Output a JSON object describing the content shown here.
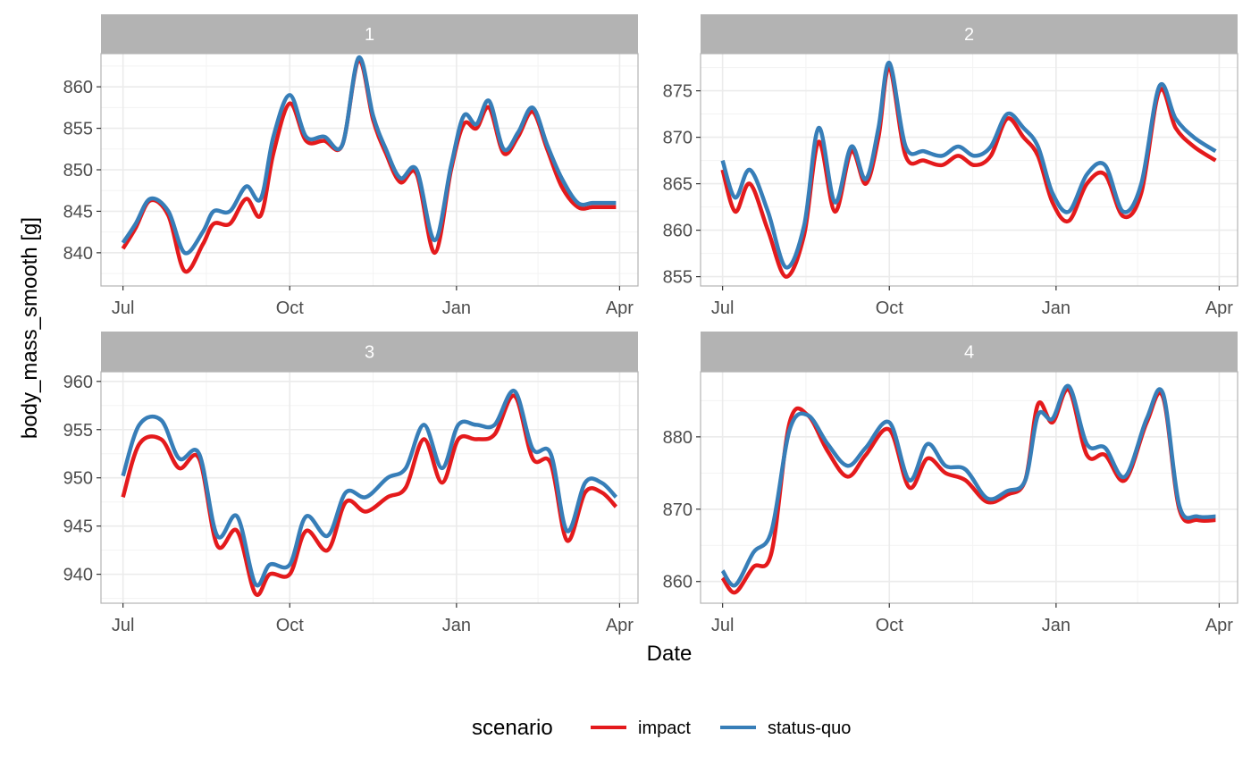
{
  "chart_data": {
    "type": "line",
    "xlabel": "Date",
    "ylabel": "body_mass_smooth [g]",
    "x_ticks": [
      "Jul",
      "Oct",
      "Jan",
      "Apr"
    ],
    "x_tick_dates": [
      "2021-07-01",
      "2021-10-01",
      "2022-01-01",
      "2022-04-01"
    ],
    "grid": true,
    "legend": {
      "title": "scenario",
      "position": "bottom",
      "entries": [
        "impact",
        "status-quo"
      ]
    },
    "colors": {
      "impact": "#e41a1c",
      "status-quo": "#377eb8",
      "strip": "#b3b3b3",
      "grid": "#ebebeb",
      "panel_border": "#b3b3b3"
    },
    "panels": [
      {
        "strip": "1",
        "ylim": [
          836,
          864
        ],
        "y_ticks": [
          840,
          845,
          850,
          855,
          860
        ],
        "series": [
          {
            "name": "impact",
            "x": [
              "2021-07-01",
              "2021-07-08",
              "2021-07-16",
              "2021-07-26",
              "2021-08-04",
              "2021-08-14",
              "2021-08-20",
              "2021-08-29",
              "2021-09-07",
              "2021-09-15",
              "2021-09-22",
              "2021-10-01",
              "2021-10-10",
              "2021-10-20",
              "2021-10-30",
              "2021-11-08",
              "2021-11-16",
              "2021-11-23",
              "2021-12-01",
              "2021-12-10",
              "2021-12-20",
              "2021-12-29",
              "2022-01-05",
              "2022-01-12",
              "2022-01-19",
              "2022-01-27",
              "2022-02-04",
              "2022-02-12",
              "2022-02-20",
              "2022-02-28",
              "2022-03-09",
              "2022-03-17",
              "2022-03-24",
              "2022-03-30"
            ],
            "y": [
              840.5,
              843,
              846.3,
              844.5,
              837.8,
              841,
              843.5,
              843.5,
              846.5,
              844.5,
              852,
              858,
              853.5,
              853.5,
              853,
              863.2,
              856,
              852,
              848.5,
              849.5,
              840,
              850,
              855.5,
              855,
              857.5,
              852,
              854,
              857,
              852.5,
              848,
              845.5,
              845.5,
              845.5,
              845.5
            ]
          },
          {
            "name": "status-quo",
            "x": [
              "2021-07-01",
              "2021-07-08",
              "2021-07-16",
              "2021-07-26",
              "2021-08-04",
              "2021-08-14",
              "2021-08-20",
              "2021-08-29",
              "2021-09-07",
              "2021-09-15",
              "2021-09-22",
              "2021-10-01",
              "2021-10-10",
              "2021-10-20",
              "2021-10-30",
              "2021-11-08",
              "2021-11-16",
              "2021-11-23",
              "2021-12-01",
              "2021-12-10",
              "2021-12-20",
              "2021-12-29",
              "2022-01-05",
              "2022-01-12",
              "2022-01-19",
              "2022-01-27",
              "2022-02-04",
              "2022-02-12",
              "2022-02-20",
              "2022-02-28",
              "2022-03-09",
              "2022-03-17",
              "2022-03-24",
              "2022-03-30"
            ],
            "y": [
              841.2,
              843.5,
              846.5,
              845,
              840,
              842.5,
              845,
              845,
              848,
              846.5,
              854,
              859,
              854,
              854,
              853,
              863.5,
              856.5,
              852.5,
              849,
              850,
              841.5,
              850.5,
              856.5,
              855.5,
              858.3,
              852.5,
              854.5,
              857.5,
              853,
              849,
              846,
              846,
              846,
              846
            ]
          }
        ]
      },
      {
        "strip": "2",
        "ylim": [
          854,
          879
        ],
        "y_ticks": [
          855,
          860,
          865,
          870,
          875
        ],
        "series": [
          {
            "name": "impact",
            "x": [
              "2021-07-01",
              "2021-07-08",
              "2021-07-16",
              "2021-07-26",
              "2021-08-05",
              "2021-08-15",
              "2021-08-23",
              "2021-09-01",
              "2021-09-10",
              "2021-09-18",
              "2021-09-25",
              "2021-10-01",
              "2021-10-10",
              "2021-10-20",
              "2021-10-30",
              "2021-11-08",
              "2021-11-17",
              "2021-11-26",
              "2021-12-05",
              "2021-12-14",
              "2021-12-22",
              "2021-12-30",
              "2022-01-08",
              "2022-01-18",
              "2022-01-28",
              "2022-02-07",
              "2022-02-17",
              "2022-02-27",
              "2022-03-08",
              "2022-03-18",
              "2022-03-30"
            ],
            "y": [
              866.5,
              862,
              865,
              860,
              855,
              859.5,
              869.5,
              862,
              868.5,
              865,
              870,
              877.5,
              868,
              867.5,
              867,
              868,
              867,
              868,
              872,
              870,
              868,
              863,
              861,
              865,
              866,
              861.5,
              864,
              875,
              871,
              869,
              867.5
            ]
          },
          {
            "name": "status-quo",
            "x": [
              "2021-07-01",
              "2021-07-08",
              "2021-07-16",
              "2021-07-26",
              "2021-08-05",
              "2021-08-15",
              "2021-08-23",
              "2021-09-01",
              "2021-09-10",
              "2021-09-18",
              "2021-09-25",
              "2021-10-01",
              "2021-10-10",
              "2021-10-20",
              "2021-10-30",
              "2021-11-08",
              "2021-11-17",
              "2021-11-26",
              "2021-12-05",
              "2021-12-14",
              "2021-12-22",
              "2021-12-30",
              "2022-01-08",
              "2022-01-18",
              "2022-01-28",
              "2022-02-07",
              "2022-02-17",
              "2022-02-27",
              "2022-03-08",
              "2022-03-18",
              "2022-03-30"
            ],
            "y": [
              867.5,
              863.5,
              866.5,
              862,
              856,
              860.5,
              871,
              863,
              869,
              865.5,
              871,
              878,
              869,
              868.5,
              868,
              869,
              868,
              869,
              872.5,
              871,
              869,
              864,
              862,
              866,
              867,
              862,
              865,
              875.5,
              872,
              870,
              868.5
            ]
          }
        ]
      },
      {
        "strip": "3",
        "ylim": [
          937,
          961
        ],
        "y_ticks": [
          940,
          945,
          950,
          955,
          960
        ],
        "series": [
          {
            "name": "impact",
            "x": [
              "2021-07-01",
              "2021-07-10",
              "2021-07-22",
              "2021-08-01",
              "2021-08-12",
              "2021-08-22",
              "2021-09-02",
              "2021-09-12",
              "2021-09-20",
              "2021-10-01",
              "2021-10-10",
              "2021-10-22",
              "2021-11-01",
              "2021-11-12",
              "2021-11-24",
              "2021-12-04",
              "2021-12-14",
              "2021-12-24",
              "2022-01-02",
              "2022-01-12",
              "2022-01-22",
              "2022-02-02",
              "2022-02-12",
              "2022-02-22",
              "2022-03-03",
              "2022-03-13",
              "2022-03-22",
              "2022-03-30"
            ],
            "y": [
              948,
              953.5,
              954,
              951,
              952,
              943,
              944.5,
              938,
              940,
              940,
              944.5,
              942.5,
              947.5,
              946.5,
              948,
              949,
              954,
              949.5,
              954,
              954,
              954.5,
              958.5,
              952,
              951.5,
              943.5,
              948.5,
              948.5,
              947
            ]
          },
          {
            "name": "status-quo",
            "x": [
              "2021-07-01",
              "2021-07-10",
              "2021-07-22",
              "2021-08-01",
              "2021-08-12",
              "2021-08-22",
              "2021-09-02",
              "2021-09-12",
              "2021-09-20",
              "2021-10-01",
              "2021-10-10",
              "2021-10-22",
              "2021-11-01",
              "2021-11-12",
              "2021-11-24",
              "2021-12-04",
              "2021-12-14",
              "2021-12-24",
              "2022-01-02",
              "2022-01-12",
              "2022-01-22",
              "2022-02-02",
              "2022-02-12",
              "2022-02-22",
              "2022-03-03",
              "2022-03-13",
              "2022-03-22",
              "2022-03-30"
            ],
            "y": [
              950.2,
              955.5,
              956,
              952,
              952.5,
              944,
              946,
              939,
              941,
              941,
              946,
              944,
              948.5,
              948,
              950,
              951,
              955.5,
              951,
              955.5,
              955.5,
              955.5,
              959,
              953,
              952.5,
              944.5,
              949.5,
              949.5,
              948
            ]
          }
        ]
      },
      {
        "strip": "4",
        "ylim": [
          857,
          889
        ],
        "y_ticks": [
          860,
          870,
          880
        ],
        "series": [
          {
            "name": "impact",
            "x": [
              "2021-07-01",
              "2021-07-08",
              "2021-07-18",
              "2021-07-28",
              "2021-08-07",
              "2021-08-17",
              "2021-08-28",
              "2021-09-08",
              "2021-09-18",
              "2021-10-01",
              "2021-10-12",
              "2021-10-22",
              "2021-11-01",
              "2021-11-12",
              "2021-11-24",
              "2021-12-05",
              "2021-12-15",
              "2021-12-22",
              "2021-12-30",
              "2022-01-08",
              "2022-01-18",
              "2022-01-28",
              "2022-02-08",
              "2022-02-20",
              "2022-03-01",
              "2022-03-10",
              "2022-03-20",
              "2022-03-30"
            ],
            "y": [
              860.5,
              858.5,
              862,
              864,
              882,
              883,
              878,
              874.5,
              877.5,
              881,
              873,
              877,
              875,
              874,
              871,
              872,
              874,
              884.5,
              882,
              886.5,
              877.5,
              877.5,
              874,
              882,
              885.5,
              870,
              868.5,
              868.5
            ]
          },
          {
            "name": "status-quo",
            "x": [
              "2021-07-01",
              "2021-07-08",
              "2021-07-18",
              "2021-07-28",
              "2021-08-07",
              "2021-08-17",
              "2021-08-28",
              "2021-09-08",
              "2021-09-18",
              "2021-10-01",
              "2021-10-12",
              "2021-10-22",
              "2021-11-01",
              "2021-11-12",
              "2021-11-24",
              "2021-12-05",
              "2021-12-15",
              "2021-12-22",
              "2021-12-30",
              "2022-01-08",
              "2022-01-18",
              "2022-01-28",
              "2022-02-08",
              "2022-02-20",
              "2022-03-01",
              "2022-03-10",
              "2022-03-20",
              "2022-03-30"
            ],
            "y": [
              861.5,
              859.5,
              864,
              867,
              881,
              883,
              879,
              876,
              878.5,
              882,
              874,
              879,
              876,
              875.5,
              871.5,
              872.5,
              874,
              883,
              882.5,
              887,
              879,
              878.5,
              874.5,
              882.5,
              886,
              870.5,
              869,
              869
            ]
          }
        ]
      }
    ]
  }
}
